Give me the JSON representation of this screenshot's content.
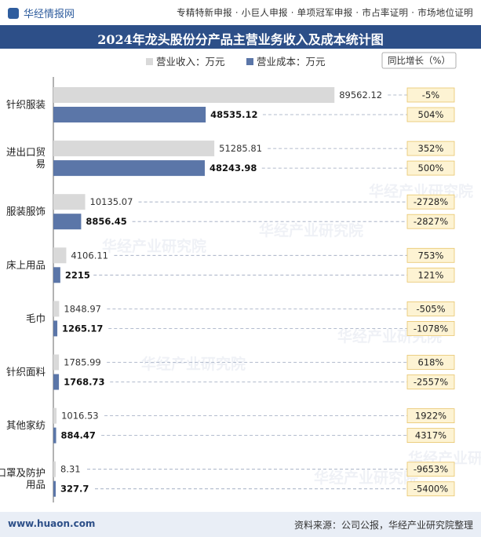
{
  "header": {
    "brand": "华经情报网",
    "nav": "专精特新申报 · 小巨人申报 · 单项冠军申报 · 市占率证明 · 市场地位证明"
  },
  "footer": {
    "website": "www.huaon.com",
    "source": "资料来源：公司公报，华经产业研究院整理"
  },
  "watermark": "华经产业研究院",
  "colors": {
    "revenue": "#d9d9d9",
    "cost": "#5b76a8",
    "title_bar": "#2d4f88",
    "yoy_box": "#fdf3d3",
    "yoy_border": "#e8c56b"
  },
  "chart_data": {
    "type": "bar",
    "orientation": "horizontal",
    "title": "2024年龙头股份分产品主营业务收入及成本统计图",
    "legend": [
      "营业收入：万元",
      "营业成本：万元"
    ],
    "yoy_header": "同比增长（%）",
    "categories": [
      "针织服装",
      "进出口贸易",
      "服装服饰",
      "床上用品",
      "毛巾",
      "针织面料",
      "其他家纺",
      "口罩及防护用品"
    ],
    "series": [
      {
        "name": "营业收入：万元",
        "values": [
          89562.12,
          51285.81,
          10135.07,
          4106.11,
          1848.97,
          1785.99,
          1016.53,
          8.31
        ]
      },
      {
        "name": "营业成本：万元",
        "values": [
          48535.12,
          48243.98,
          8856.45,
          2215,
          1265.17,
          1768.73,
          884.47,
          327.7
        ]
      }
    ],
    "value_labels": {
      "revenue": [
        "89562.12",
        "51285.81",
        "10135.07",
        "4106.11",
        "1848.97",
        "1785.99",
        "1016.53",
        "8.31"
      ],
      "cost": [
        "48535.12",
        "48243.98",
        "8856.45",
        "2215",
        "1265.17",
        "1768.73",
        "884.47",
        "327.7"
      ]
    },
    "yoy": {
      "revenue": [
        "-5%",
        "352%",
        "-2728%",
        "753%",
        "-505%",
        "618%",
        "1922%",
        "-9653%"
      ],
      "cost": [
        "504%",
        "500%",
        "-2827%",
        "121%",
        "-1078%",
        "-2557%",
        "4317%",
        "-5400%"
      ]
    },
    "xlim": [
      0,
      100000
    ],
    "grid": false,
    "legend_position": "top"
  }
}
